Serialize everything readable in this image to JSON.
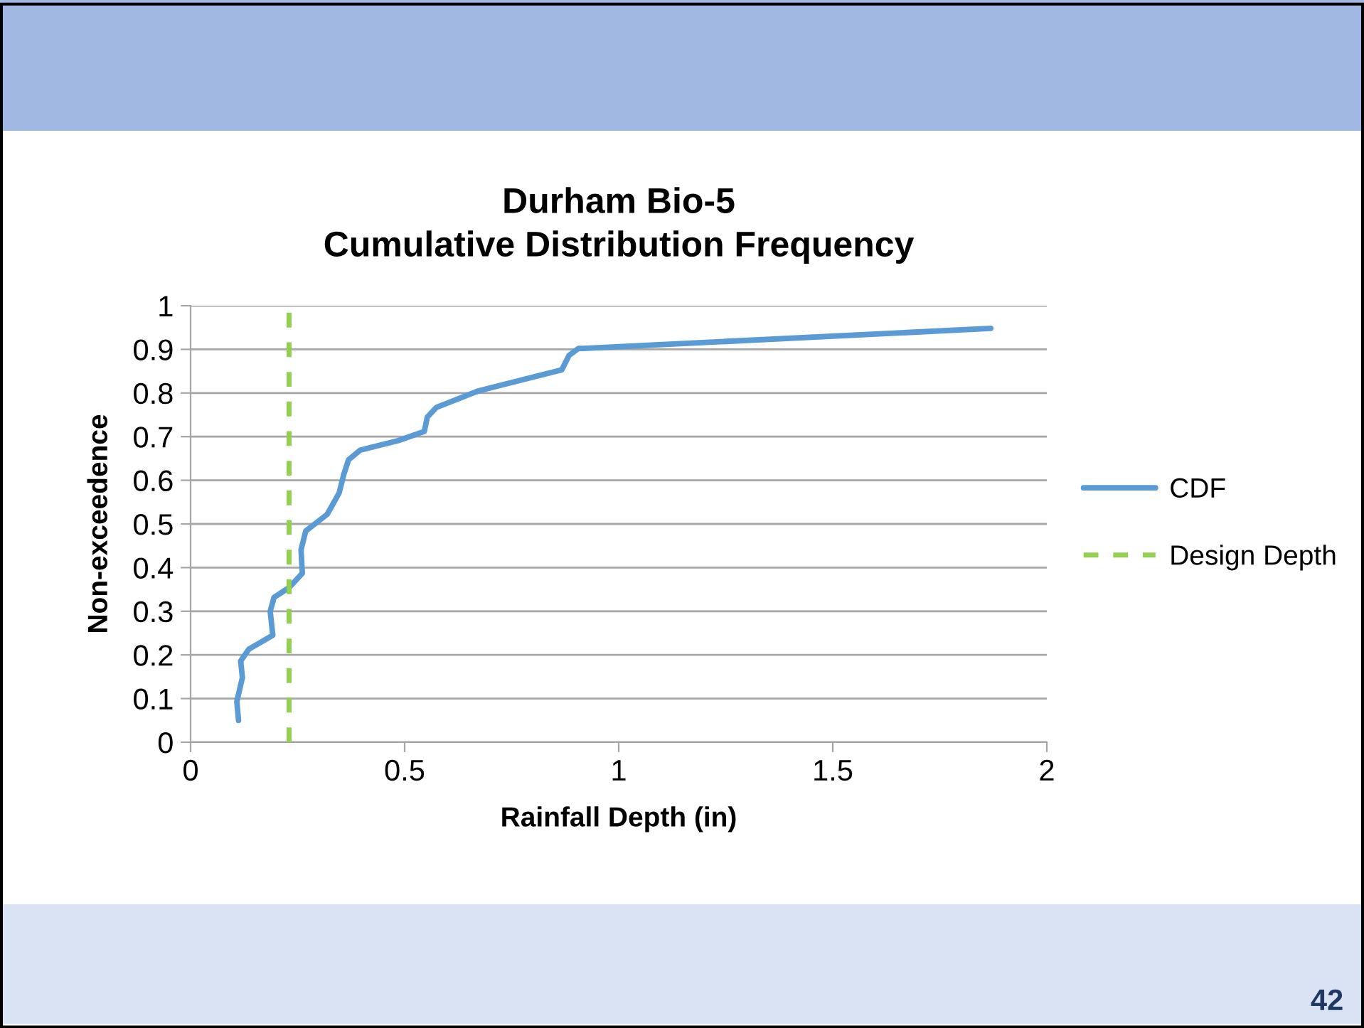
{
  "chart_data": {
    "type": "line",
    "title": "Durham Bio-5\nCumulative Distribution Frequency",
    "xlabel": "Rainfall Depth (in)",
    "ylabel": "Non-exceedence",
    "series": [
      {
        "name": "CDF",
        "color": "#5b9bd5",
        "line_style": "solid",
        "x": [
          0.112,
          0.108,
          0.121,
          0.117,
          0.136,
          0.192,
          0.186,
          0.195,
          0.23,
          0.261,
          0.258,
          0.269,
          0.319,
          0.347,
          0.358,
          0.369,
          0.396,
          0.485,
          0.546,
          0.553,
          0.574,
          0.673,
          0.867,
          0.884,
          0.906,
          0.917,
          1.869
        ],
        "values": [
          0.05,
          0.093,
          0.148,
          0.186,
          0.213,
          0.245,
          0.3,
          0.332,
          0.354,
          0.387,
          0.441,
          0.484,
          0.522,
          0.571,
          0.614,
          0.647,
          0.669,
          0.691,
          0.712,
          0.745,
          0.767,
          0.805,
          0.853,
          0.886,
          0.902,
          0.902,
          0.948
        ]
      },
      {
        "name": "Design Depth",
        "color": "#92d050",
        "line_style": "dashed",
        "x": [
          0.23,
          0.23
        ],
        "values": [
          0,
          1
        ]
      }
    ],
    "xlim": [
      0,
      2
    ],
    "xticks": [
      0,
      0.5,
      1,
      1.5,
      2
    ],
    "ylim": [
      0,
      1
    ],
    "yticks": [
      0,
      0.1,
      0.2,
      0.3,
      0.4,
      0.5,
      0.6,
      0.7,
      0.8,
      0.9,
      1
    ],
    "grid": "y",
    "legend": "right",
    "marker": "none",
    "annotations": [
      "42"
    ]
  }
}
